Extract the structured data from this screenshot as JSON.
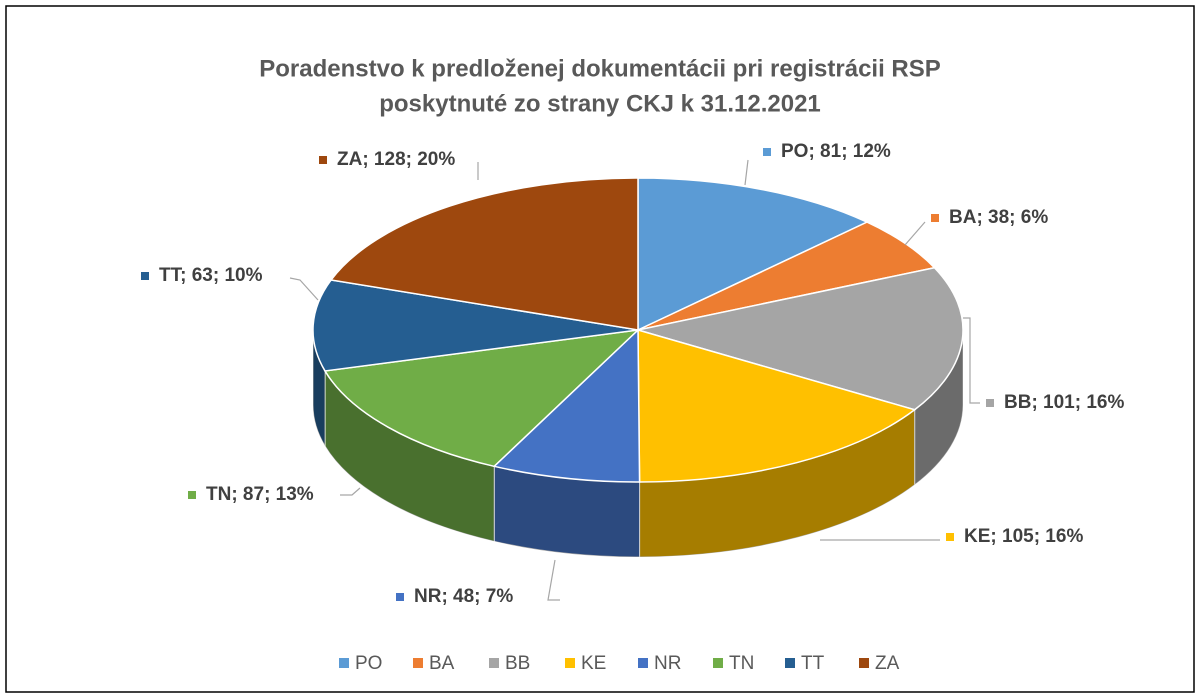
{
  "chart_data": {
    "type": "pie3d",
    "title": [
      "Poradenstvo k predloženej dokumentácii pri registrácii RSP",
      "poskytnuté zo strany CKJ k 31.12.2021"
    ],
    "categories": [
      "PO",
      "BA",
      "BB",
      "KE",
      "NR",
      "TN",
      "TT",
      "ZA"
    ],
    "values": [
      81,
      38,
      101,
      105,
      48,
      87,
      63,
      128
    ],
    "value_labels": [
      "PO; 81; 12%",
      "BA; 38; 6%",
      "BB; 101; 16%",
      "KE; 105; 16%",
      "NR; 48; 7%",
      "TN; 87; 13%",
      "TT; 63; 10%",
      "ZA; 128; 20%"
    ],
    "colors": [
      "#5b9bd5",
      "#ed7d31",
      "#a5a5a5",
      "#ffc000",
      "#4472c4",
      "#70ad47",
      "#255e91",
      "#9e480e"
    ],
    "legend": "bottom"
  }
}
